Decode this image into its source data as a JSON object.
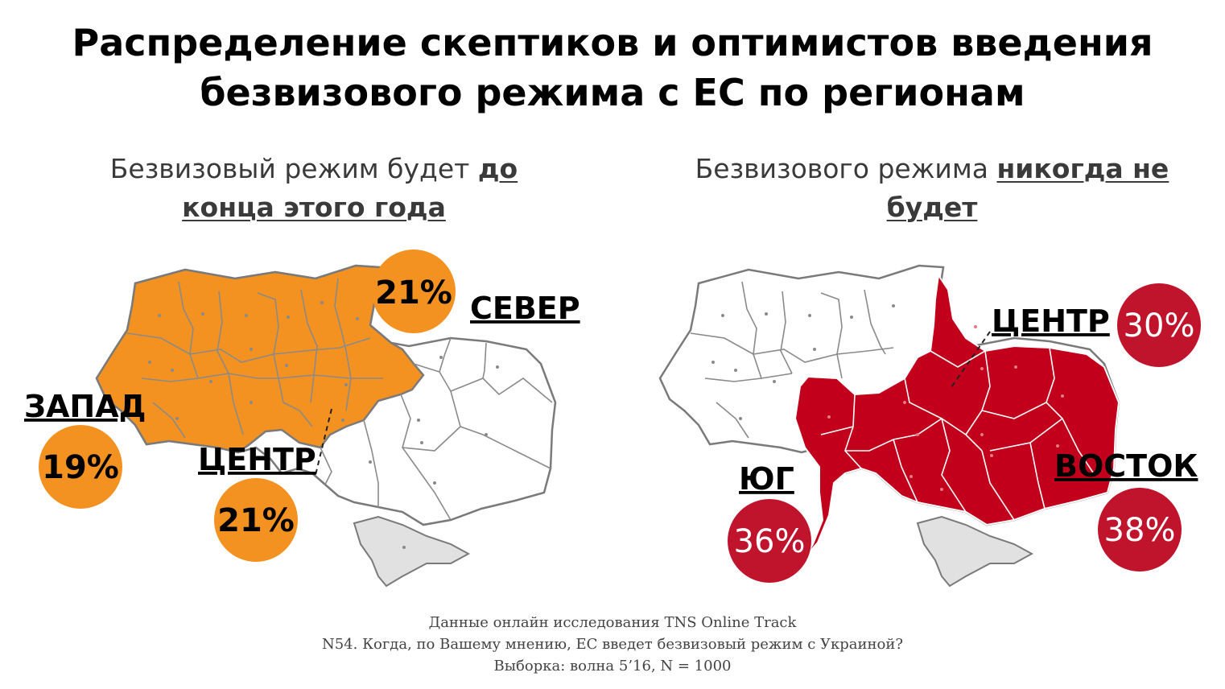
{
  "title": {
    "line1": "Распределение скептиков и оптимистов введения",
    "line2": "безвизового режима с ЕС по регионам"
  },
  "left": {
    "subtitle_plain": "Безвизовый режим будет ",
    "subtitle_emphasis_a": "до",
    "subtitle_emphasis_b": "конца этого года",
    "colors": {
      "fill": "#F39220",
      "rest": "#FFFFFF",
      "crimea": "#E1E1E1",
      "border": "#7A7A7A"
    },
    "regions": [
      {
        "label": "СЕВЕР",
        "percent": "21%"
      },
      {
        "label": "ЗАПАД",
        "percent": "19%"
      },
      {
        "label": "ЦЕНТР",
        "percent": "21%"
      }
    ]
  },
  "right": {
    "subtitle_plain": "Безвизового режима ",
    "subtitle_emphasis_a": "никогда не",
    "subtitle_emphasis_b": "будет",
    "colors": {
      "fill": "#C3001C",
      "badge": "#C0142D",
      "rest": "#FFFFFF",
      "crimea": "#E1E1E1",
      "border": "#7A7A7A"
    },
    "regions": [
      {
        "label": "ЦЕНТР",
        "percent": "30%"
      },
      {
        "label": "ЮГ",
        "percent": "36%"
      },
      {
        "label": "ВОСТОК",
        "percent": "38%"
      }
    ]
  },
  "footer": {
    "line1": "Данные онлайн исследования TNS Online Track",
    "line2": "N54. Когда, по Вашему мнению, ЕС введет безвизовый режим с Украиной?",
    "line3": "Выборка: волна 5’16, N = 1000"
  }
}
